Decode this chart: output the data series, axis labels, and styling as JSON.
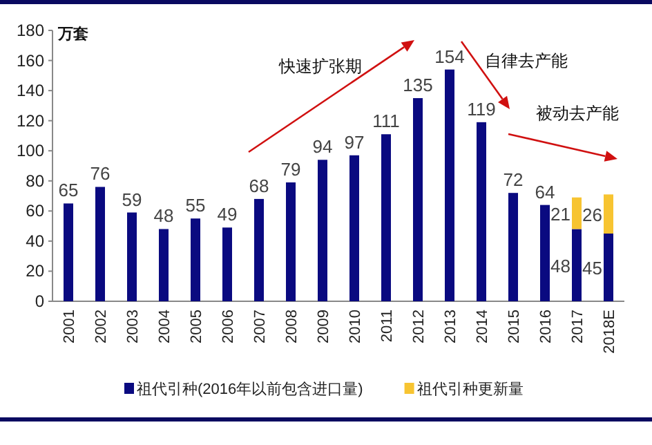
{
  "chart_data": {
    "type": "bar",
    "stacked": true,
    "ylabel": "万套",
    "categories": [
      "2001",
      "2002",
      "2003",
      "2004",
      "2005",
      "2006",
      "2007",
      "2008",
      "2009",
      "2010",
      "2011",
      "2012",
      "2013",
      "2014",
      "2015",
      "2016",
      "2017",
      "2018E"
    ],
    "series": [
      {
        "name": "祖代引种(2016年以前包含进口量)",
        "color": "#0a0a80",
        "values": [
          65,
          76,
          59,
          48,
          55,
          49,
          68,
          79,
          94,
          97,
          111,
          135,
          154,
          119,
          72,
          64,
          48,
          45
        ]
      },
      {
        "name": "祖代引种更新量",
        "color": "#f7c431",
        "values": [
          null,
          null,
          null,
          null,
          null,
          null,
          null,
          null,
          null,
          null,
          null,
          null,
          null,
          null,
          null,
          null,
          21,
          26
        ]
      }
    ],
    "ylim": [
      0,
      180
    ],
    "yticks": [
      0,
      20,
      40,
      60,
      80,
      100,
      120,
      140,
      160,
      180
    ],
    "data_labels": true,
    "legend": "bottom",
    "grid": false,
    "annotations": [
      "快速扩张期",
      "自律去产能",
      "被动去产能"
    ]
  }
}
